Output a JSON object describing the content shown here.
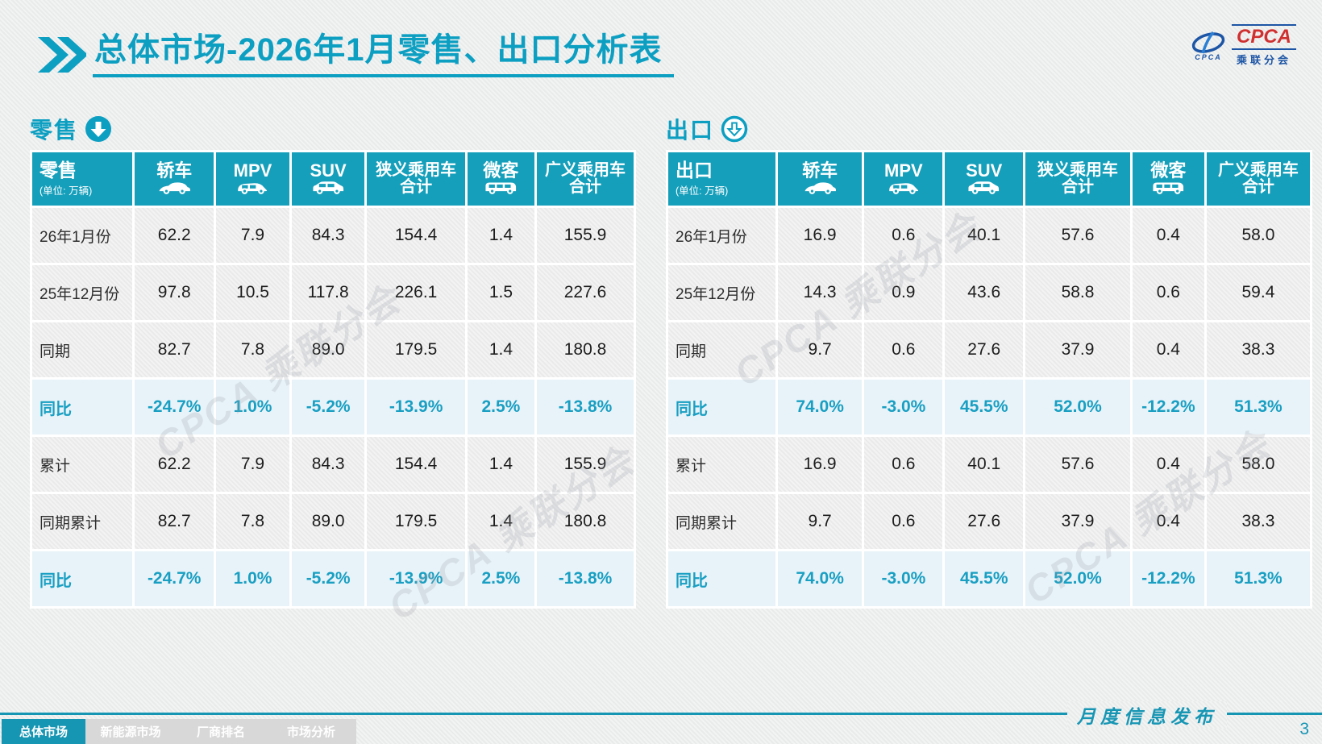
{
  "header": {
    "title": "总体市场-2026年1月零售、出口分析表"
  },
  "logo": {
    "acronym": "CPCA",
    "name_cn": "乘联分会",
    "emblem_caption": "CPCA"
  },
  "watermark": "CPCA 乘联分会",
  "columns": [
    {
      "lines": [
        "轿车"
      ],
      "icon": "sedan-icon"
    },
    {
      "lines": [
        "MPV"
      ],
      "icon": "mpv-icon"
    },
    {
      "lines": [
        "SUV"
      ],
      "icon": "suv-icon"
    },
    {
      "lines": [
        "狭义乘用车",
        "合计"
      ],
      "icon": null
    },
    {
      "lines": [
        "微客"
      ],
      "icon": "van-icon"
    },
    {
      "lines": [
        "广义乘用车",
        "合计"
      ],
      "icon": null
    }
  ],
  "retail": {
    "section_label": "零售",
    "table_label": "零售",
    "unit": "(单位: 万辆)",
    "rows": [
      {
        "label": "26年1月份",
        "values": [
          "62.2",
          "7.9",
          "84.3",
          "154.4",
          "1.4",
          "155.9"
        ],
        "highlight": false
      },
      {
        "label": "25年12月份",
        "values": [
          "97.8",
          "10.5",
          "117.8",
          "226.1",
          "1.5",
          "227.6"
        ],
        "highlight": false
      },
      {
        "label": "同期",
        "values": [
          "82.7",
          "7.8",
          "89.0",
          "179.5",
          "1.4",
          "180.8"
        ],
        "highlight": false
      },
      {
        "label": "同比",
        "values": [
          "-24.7%",
          "1.0%",
          "-5.2%",
          "-13.9%",
          "2.5%",
          "-13.8%"
        ],
        "highlight": true
      },
      {
        "label": "累计",
        "values": [
          "62.2",
          "7.9",
          "84.3",
          "154.4",
          "1.4",
          "155.9"
        ],
        "highlight": false
      },
      {
        "label": "同期累计",
        "values": [
          "82.7",
          "7.8",
          "89.0",
          "179.5",
          "1.4",
          "180.8"
        ],
        "highlight": false
      },
      {
        "label": "同比",
        "values": [
          "-24.7%",
          "1.0%",
          "-5.2%",
          "-13.9%",
          "2.5%",
          "-13.8%"
        ],
        "highlight": true
      }
    ]
  },
  "export": {
    "section_label": "出口",
    "table_label": "出口",
    "unit": "(单位: 万辆)",
    "rows": [
      {
        "label": "26年1月份",
        "values": [
          "16.9",
          "0.6",
          "40.1",
          "57.6",
          "0.4",
          "58.0"
        ],
        "highlight": false
      },
      {
        "label": "25年12月份",
        "values": [
          "14.3",
          "0.9",
          "43.6",
          "58.8",
          "0.6",
          "59.4"
        ],
        "highlight": false
      },
      {
        "label": "同期",
        "values": [
          "9.7",
          "0.6",
          "27.6",
          "37.9",
          "0.4",
          "38.3"
        ],
        "highlight": false
      },
      {
        "label": "同比",
        "values": [
          "74.0%",
          "-3.0%",
          "45.5%",
          "52.0%",
          "-12.2%",
          "51.3%"
        ],
        "highlight": true
      },
      {
        "label": "累计",
        "values": [
          "16.9",
          "0.6",
          "40.1",
          "57.6",
          "0.4",
          "58.0"
        ],
        "highlight": false
      },
      {
        "label": "同期累计",
        "values": [
          "9.7",
          "0.6",
          "27.6",
          "37.9",
          "0.4",
          "38.3"
        ],
        "highlight": false
      },
      {
        "label": "同比",
        "values": [
          "74.0%",
          "-3.0%",
          "45.5%",
          "52.0%",
          "-12.2%",
          "51.3%"
        ],
        "highlight": true
      }
    ]
  },
  "nav": [
    {
      "label": "总体市场",
      "active": true
    },
    {
      "label": "新能源市场",
      "active": false
    },
    {
      "label": "厂商排名",
      "active": false
    },
    {
      "label": "市场分析",
      "active": false
    }
  ],
  "footer": {
    "label": "月度信息发布",
    "page": "3"
  },
  "colors": {
    "teal": "#159fbb",
    "teal_line": "#1796b4",
    "title": "#0c9fc2",
    "highlight_bg": "#e8f3f9",
    "highlight_text": "#199fc2"
  }
}
